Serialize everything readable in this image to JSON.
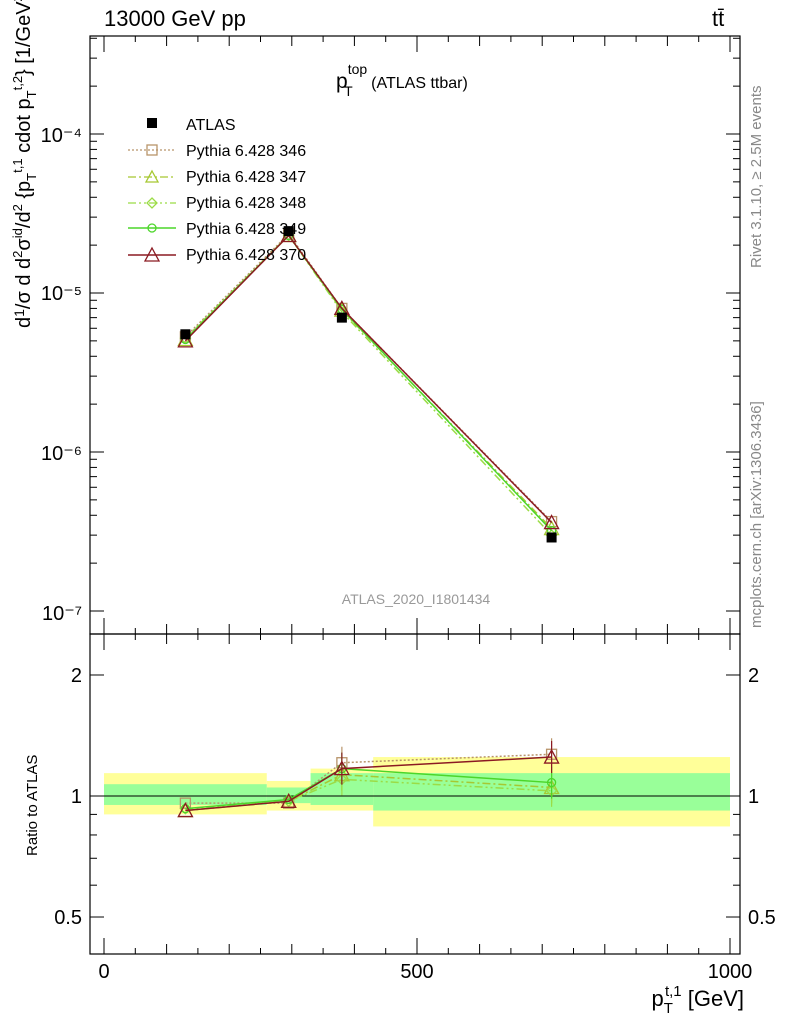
{
  "header": {
    "energy_label": "13000 GeV pp",
    "process_label": "tt̄"
  },
  "sidebar": {
    "rivet_label": "Rivet 3.1.10, ≥ 2.5M events",
    "site_label": "mcplots.cern.ch [arXiv:1306.3436]"
  },
  "main_plot": {
    "title_main": "p",
    "title_sup": "top",
    "title_sub": "T",
    "title_rest": " (ATLAS ttbar)",
    "analysis_label": "ATLAS_2020_I1801434",
    "ylabel": "d¹/σ d d²σⁱᵈ/d² {p_T^t,1 cdot p_T^t,2} [1/GeV²]",
    "ytick_labels": [
      "10⁻⁷",
      "10⁻⁶",
      "10⁻⁵",
      "10⁻⁴"
    ]
  },
  "ratio_plot": {
    "ylabel": "Ratio to ATLAS",
    "ytick_labels": [
      "0.5",
      "1",
      "2"
    ],
    "xtick_labels": [
      "0",
      "500",
      "1000"
    ],
    "xlabel": "p_T^t,1 [GeV]"
  },
  "colors": {
    "data": "#000000",
    "p346": "#b8946a",
    "p347": "#a6c832",
    "p348": "#9bdc46",
    "p349": "#4cd62a",
    "p370": "#8b1a22",
    "band_outer": "#ffff99",
    "band_inner": "#99ff99"
  },
  "chart_data": {
    "type": "line",
    "x_axis": {
      "label": "p_T^t,1 [GeV]",
      "range": [
        -30,
        1020
      ]
    },
    "main": {
      "yscale": "log",
      "ylim": [
        1e-07,
        0.0005
      ],
      "x": [
        130,
        295,
        380,
        715
      ],
      "series": [
        {
          "name": "ATLAS",
          "values": [
            5.5e-06,
            2.45e-05,
            7e-06,
            2.9e-07
          ],
          "errors": [
            3e-07,
            8e-07,
            3e-07,
            1.5e-08
          ]
        },
        {
          "name": "Pythia 6.428 346",
          "values": [
            5.3e-06,
            2.35e-05,
            8e-06,
            3.65e-07
          ]
        },
        {
          "name": "Pythia 6.428 347",
          "values": [
            5.1e-06,
            2.3e-05,
            7.8e-06,
            3.3e-07
          ]
        },
        {
          "name": "Pythia 6.428 348",
          "values": [
            5.2e-06,
            2.3e-05,
            7.6e-06,
            3e-07
          ]
        },
        {
          "name": "Pythia 6.428 349",
          "values": [
            5.1e-06,
            2.3e-05,
            7.9e-06,
            3.2e-07
          ]
        },
        {
          "name": "Pythia 6.428 370",
          "values": [
            5e-06,
            2.3e-05,
            8e-06,
            3.6e-07
          ]
        }
      ]
    },
    "ratio": {
      "yscale": "log",
      "ylim": [
        0.4,
        2.3
      ],
      "bins": [
        [
          0,
          260
        ],
        [
          260,
          330
        ],
        [
          330,
          430
        ],
        [
          430,
          1000
        ]
      ],
      "band_inner": [
        [
          0.95,
          1.07
        ],
        [
          0.96,
          1.05
        ],
        [
          0.95,
          1.14
        ],
        [
          0.92,
          1.14
        ]
      ],
      "band_outer": [
        [
          0.9,
          1.14
        ],
        [
          0.92,
          1.09
        ],
        [
          0.92,
          1.17
        ],
        [
          0.84,
          1.25
        ]
      ],
      "series": [
        {
          "name": "Pythia 6.428 346",
          "values": [
            0.96,
            0.96,
            1.21,
            1.27
          ]
        },
        {
          "name": "Pythia 6.428 347",
          "values": [
            0.92,
            0.97,
            1.13,
            1.05
          ]
        },
        {
          "name": "Pythia 6.428 348",
          "values": [
            0.93,
            0.97,
            1.1,
            1.03
          ]
        },
        {
          "name": "Pythia 6.428 349",
          "values": [
            0.93,
            0.98,
            1.17,
            1.08
          ]
        },
        {
          "name": "Pythia 6.428 370",
          "values": [
            0.92,
            0.97,
            1.17,
            1.25
          ]
        }
      ]
    }
  }
}
